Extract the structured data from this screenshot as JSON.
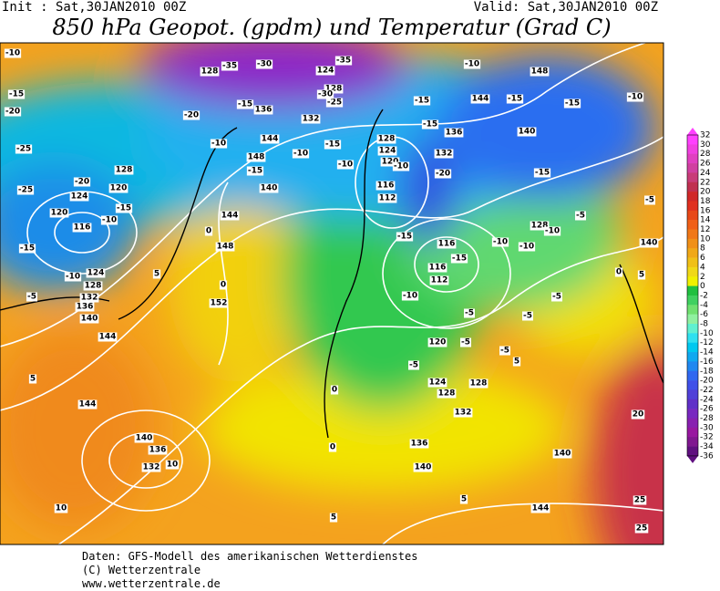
{
  "header": {
    "init": "Init : Sat,30JAN2010 00Z",
    "valid": "Valid: Sat,30JAN2010 00Z",
    "title": "850 hPa Geopot. (gpdm) und Temperatur (Grad C)"
  },
  "footer": [
    "Daten: GFS-Modell des amerikanischen Wetterdienstes",
    "(C) Wetterzentrale",
    "www.wetterzentrale.de"
  ],
  "colorbar": {
    "labels": [
      32,
      30,
      28,
      26,
      24,
      22,
      20,
      18,
      16,
      14,
      12,
      10,
      8,
      6,
      4,
      2,
      0,
      -2,
      -4,
      -6,
      -8,
      -10,
      -12,
      -14,
      -16,
      -18,
      -20,
      -22,
      -24,
      -26,
      -28,
      -30,
      -32,
      -34,
      -36
    ],
    "colors": [
      "#ff40ff",
      "#f040e0",
      "#e040c0",
      "#d040a0",
      "#c83c78",
      "#c03050",
      "#d02828",
      "#e03020",
      "#e84818",
      "#f06018",
      "#f07818",
      "#f09018",
      "#f0a818",
      "#f0c018",
      "#f0d818",
      "#f0f000",
      "#20c040",
      "#40d060",
      "#70e070",
      "#90f0a0",
      "#60f0d0",
      "#30e0f0",
      "#00c8f0",
      "#10a8f0",
      "#2088f0",
      "#3068f0",
      "#4050e8",
      "#5040d8",
      "#6030c8",
      "#7828c0",
      "#8820b0",
      "#9818a0",
      "#801890",
      "#601080"
    ]
  },
  "map": {
    "geopotential_labels": [
      128,
      124,
      128,
      136,
      132,
      144,
      148,
      140,
      128,
      124,
      120,
      120,
      116,
      124,
      128,
      132,
      136,
      140,
      144,
      148,
      144,
      152,
      128,
      124,
      120,
      116,
      112,
      132,
      136,
      144,
      148,
      140,
      128,
      116,
      116,
      112,
      120,
      124,
      128,
      128,
      132,
      136,
      140,
      140,
      144,
      144,
      140,
      136,
      132,
      140
    ],
    "temperature_labels": [
      -10,
      -35,
      -30,
      -35,
      -15,
      -20,
      -20,
      -15,
      -25,
      -30,
      -10,
      -15,
      -15,
      -15,
      -10,
      -15,
      -10,
      -15,
      -10,
      -25,
      -20,
      -25,
      -10,
      -15,
      -20,
      -10,
      -15,
      -10,
      -15,
      -15,
      -10,
      -5,
      -15,
      -10,
      -10,
      -10,
      -5,
      -5,
      -15,
      -10,
      -5,
      -5,
      -5,
      -5,
      -5,
      0,
      0,
      0,
      0,
      5,
      5,
      10,
      10,
      5,
      5,
      0,
      5,
      -5,
      5,
      20,
      25,
      25
    ]
  }
}
